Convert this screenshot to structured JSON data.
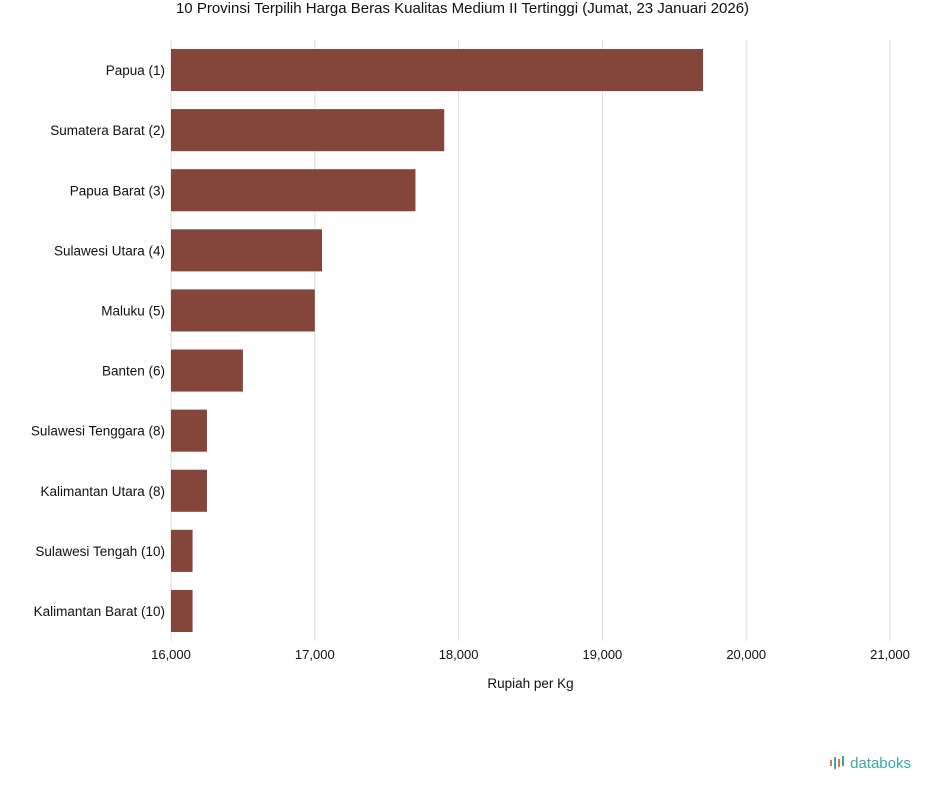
{
  "chart_data": {
    "type": "bar",
    "orientation": "horizontal",
    "title": "10 Provinsi Terpilih Harga Beras Kualitas Medium II Tertinggi (Jumat, 23 Januari 2026)",
    "xlabel": "Rupiah per Kg",
    "ylabel": "",
    "categories": [
      "Papua (1)",
      "Sumatera Barat (2)",
      "Papua Barat (3)",
      "Sulawesi Utara (4)",
      "Maluku (5)",
      "Banten (6)",
      "Sulawesi Tenggara (8)",
      "Kalimantan Utara (8)",
      "Sulawesi Tengah (10)",
      "Kalimantan Barat (10)"
    ],
    "values": [
      19700,
      17900,
      17700,
      17050,
      17000,
      16500,
      16250,
      16250,
      16150,
      16150
    ],
    "xlim": [
      16000,
      21000
    ],
    "xticks": [
      "16,000",
      "17,000",
      "18,000",
      "19,000",
      "20,000",
      "21,000"
    ],
    "xtick_values": [
      16000,
      17000,
      18000,
      19000,
      20000,
      21000
    ],
    "bar_color": "#84453b",
    "grid": "vertical"
  },
  "brand": {
    "name": "databoks",
    "color": "#3aa8a8",
    "icon_accent": "#e8704a"
  }
}
